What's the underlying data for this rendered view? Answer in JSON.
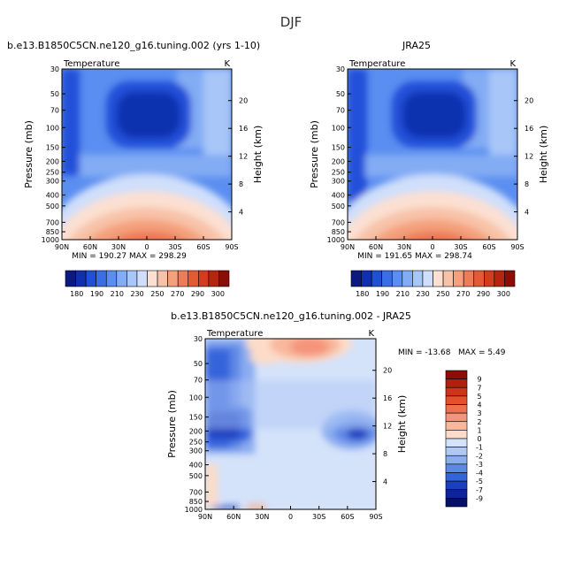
{
  "page": {
    "title": "DJF"
  },
  "chart_data": [
    {
      "type": "heatmap",
      "title": "b.e13.B1850C5CN.ne120_g16.tuning.002 (yrs 1-10)",
      "left_label": "Temperature",
      "right_label": "K",
      "xlabel": "",
      "ylabel": "Pressure (mb)",
      "y2label": "Height (km)",
      "x_ticks": [
        "90N",
        "60N",
        "30N",
        "0",
        "30S",
        "60S",
        "90S"
      ],
      "y_ticks": [
        "30",
        "50",
        "70",
        "100",
        "150",
        "200",
        "250",
        "300",
        "400",
        "500",
        "700",
        "850",
        "1000"
      ],
      "y2_ticks": [
        "20",
        "16",
        "12",
        "8",
        "4"
      ],
      "y_scale": "log",
      "ylim": [
        1000,
        30
      ],
      "xlim": [
        "90N",
        "90S"
      ],
      "stats": {
        "min_label": "MIN = 190.27",
        "max_label": "MAX = 298.29",
        "min": 190.27,
        "max": 298.29
      },
      "colorbar": {
        "orientation": "horizontal",
        "labels": [
          "180",
          "190",
          "210",
          "230",
          "250",
          "270",
          "290",
          "300"
        ],
        "colors": [
          "#0a1a80",
          "#1030b0",
          "#2050d8",
          "#3a6ee8",
          "#5a8ef0",
          "#82acf4",
          "#a8c6f8",
          "#cfdffb",
          "#fbe0d2",
          "#f8c2a8",
          "#f4a07c",
          "#ee7c58",
          "#e45a36",
          "#d43c20",
          "#b82410",
          "#8c0c06"
        ]
      }
    },
    {
      "type": "heatmap",
      "title": "JRA25",
      "left_label": "Temperature",
      "right_label": "K",
      "xlabel": "",
      "ylabel": "Pressure (mb)",
      "y2label": "Height (km)",
      "x_ticks": [
        "90N",
        "60N",
        "30N",
        "0",
        "30S",
        "60S",
        "90S"
      ],
      "y_ticks": [
        "30",
        "50",
        "70",
        "100",
        "150",
        "200",
        "250",
        "300",
        "400",
        "500",
        "700",
        "850",
        "1000"
      ],
      "y2_ticks": [
        "20",
        "16",
        "12",
        "8",
        "4"
      ],
      "y_scale": "log",
      "ylim": [
        1000,
        30
      ],
      "xlim": [
        "90N",
        "90S"
      ],
      "stats": {
        "min_label": "MIN = 191.65",
        "max_label": "MAX = 298.74",
        "min": 191.65,
        "max": 298.74
      },
      "colorbar": {
        "orientation": "horizontal",
        "labels": [
          "180",
          "190",
          "210",
          "230",
          "250",
          "270",
          "290",
          "300"
        ],
        "colors": [
          "#0a1a80",
          "#1030b0",
          "#2050d8",
          "#3a6ee8",
          "#5a8ef0",
          "#82acf4",
          "#a8c6f8",
          "#cfdffb",
          "#fbe0d2",
          "#f8c2a8",
          "#f4a07c",
          "#ee7c58",
          "#e45a36",
          "#d43c20",
          "#b82410",
          "#8c0c06"
        ]
      }
    },
    {
      "type": "heatmap",
      "title": "b.e13.B1850C5CN.ne120_g16.tuning.002 - JRA25",
      "left_label": "Temperature",
      "right_label": "K",
      "xlabel": "",
      "ylabel": "Pressure (mb)",
      "y2label": "Height (km)",
      "x_ticks": [
        "90N",
        "60N",
        "30N",
        "0",
        "30S",
        "60S",
        "90S"
      ],
      "y_ticks": [
        "30",
        "50",
        "70",
        "100",
        "150",
        "200",
        "250",
        "300",
        "400",
        "500",
        "700",
        "850",
        "1000"
      ],
      "y2_ticks": [
        "20",
        "16",
        "12",
        "8",
        "4"
      ],
      "y_scale": "log",
      "ylim": [
        1000,
        30
      ],
      "xlim": [
        "90N",
        "90S"
      ],
      "stats": {
        "min_label": "MIN = -13.68",
        "max_label": "MAX =    5.49",
        "min": -13.68,
        "max": 5.49
      },
      "colorbar": {
        "orientation": "vertical",
        "labels": [
          "9",
          "7",
          "5",
          "4",
          "3",
          "2",
          "1",
          "0",
          "-1",
          "-2",
          "-3",
          "-4",
          "-5",
          "-7",
          "-9"
        ],
        "colors": [
          "#8c0c06",
          "#b41e0e",
          "#d03418",
          "#e4502c",
          "#ee7050",
          "#f4947a",
          "#f8b89c",
          "#fcdcc8",
          "#d4e2fa",
          "#b0c8f6",
          "#8aacf0",
          "#5e88e6",
          "#3464dc",
          "#1a40c0",
          "#0e2498",
          "#061068"
        ]
      }
    }
  ]
}
